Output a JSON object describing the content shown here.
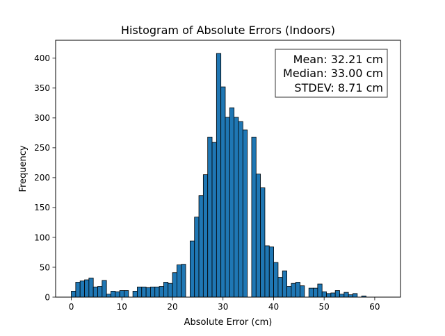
{
  "chart_data": {
    "type": "bar",
    "title": "Histogram of Absolute Errors (Indoors)",
    "xlabel": "Absolute Error (cm)",
    "ylabel": "Frequency",
    "xlim": [
      -3.1,
      65.1
    ],
    "ylim": [
      0,
      430
    ],
    "xticks": [
      0,
      10,
      20,
      30,
      40,
      50,
      60
    ],
    "yticks": [
      0,
      50,
      100,
      150,
      200,
      250,
      300,
      350,
      400
    ],
    "bin_width": 0.87,
    "bin_starts": [
      0,
      0.87,
      1.74,
      2.61,
      3.48,
      4.35,
      5.22,
      6.09,
      6.96,
      7.83,
      8.7,
      9.57,
      10.44,
      11.31,
      12.18,
      13.05,
      13.92,
      14.79,
      15.66,
      16.53,
      17.4,
      18.27,
      19.14,
      20.01,
      20.88,
      21.75,
      22.62,
      23.49,
      24.36,
      25.23,
      26.1,
      26.97,
      27.84,
      28.71,
      29.58,
      30.45,
      31.32,
      32.19,
      33.06,
      33.93,
      34.8,
      35.67,
      36.54,
      37.41,
      38.28,
      39.15,
      40.02,
      40.89,
      41.76,
      42.63,
      43.5,
      44.37,
      45.24,
      46.11,
      46.98,
      47.85,
      48.72,
      49.59,
      50.46,
      51.33,
      52.2,
      53.07,
      53.94,
      54.81,
      55.68,
      56.55,
      57.42,
      58.29,
      59.16,
      60.03,
      60.9
    ],
    "values": [
      10,
      25,
      27,
      29,
      32,
      17,
      18,
      28,
      5,
      10,
      9,
      11,
      11,
      0,
      10,
      17,
      17,
      16,
      17,
      17,
      18,
      25,
      23,
      41,
      54,
      55,
      0,
      94,
      134,
      170,
      205,
      268,
      259,
      408,
      352,
      301,
      317,
      301,
      294,
      280,
      0,
      268,
      206,
      183,
      86,
      84,
      58,
      33,
      44,
      18,
      23,
      25,
      19,
      0,
      15,
      15,
      22,
      9,
      6,
      7,
      11,
      5,
      8,
      4,
      6,
      0,
      2,
      0,
      0,
      0,
      0
    ],
    "bar_color": "#1f77b4",
    "edge_color": "#000000",
    "annotation": {
      "lines": [
        "Mean: 32.21 cm",
        "Median: 33.00 cm",
        "STDEV: 8.71 cm"
      ],
      "placement": "top-right"
    }
  }
}
